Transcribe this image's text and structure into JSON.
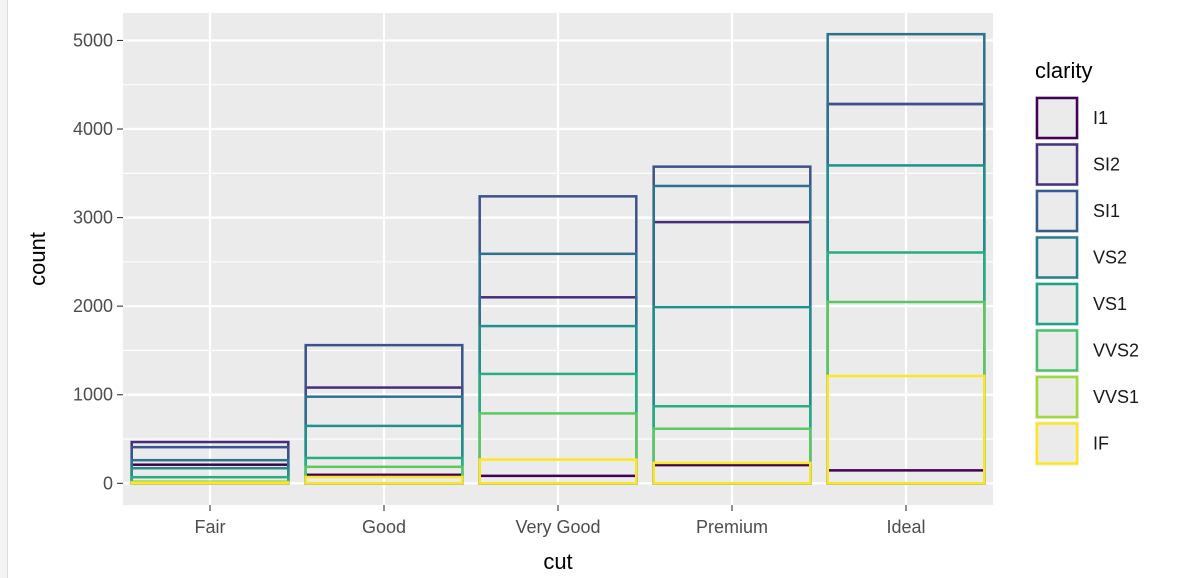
{
  "chart_data": {
    "type": "bar",
    "position": "identity",
    "xlabel": "cut",
    "ylabel": "count",
    "categories": [
      "Fair",
      "Good",
      "Very Good",
      "Premium",
      "Ideal"
    ],
    "ylim": [
      0,
      5100
    ],
    "yticks": [
      0,
      1000,
      2000,
      3000,
      4000,
      5000
    ],
    "grid": true,
    "legend": {
      "title": "clarity",
      "placement": "right"
    },
    "series": [
      {
        "name": "I1",
        "color": "#440154",
        "values": [
          210,
          96,
          84,
          205,
          146
        ]
      },
      {
        "name": "SI2",
        "color": "#472D7B",
        "values": [
          466,
          1081,
          2100,
          2949,
          4282
        ]
      },
      {
        "name": "SI1",
        "color": "#3B528B",
        "values": [
          408,
          1560,
          3240,
          3575,
          4282
        ]
      },
      {
        "name": "VS2",
        "color": "#2C728E",
        "values": [
          261,
          978,
          2591,
          3357,
          5071
        ]
      },
      {
        "name": "VS1",
        "color": "#21908C",
        "values": [
          170,
          648,
          1775,
          1989,
          3589
        ]
      },
      {
        "name": "VVS2",
        "color": "#27AD81",
        "values": [
          69,
          286,
          1235,
          870,
          2606
        ]
      },
      {
        "name": "VVS1",
        "color": "#5DC863",
        "values": [
          17,
          186,
          789,
          616,
          2047
        ]
      },
      {
        "name": "IF",
        "color": "#FDE725",
        "values": [
          9,
          71,
          268,
          230,
          1212
        ]
      }
    ],
    "legend_colors": [
      "#440154",
      "#46337E",
      "#365C8D",
      "#277F8E",
      "#1FA187",
      "#4AC16D",
      "#9FDA3A",
      "#FDE725"
    ]
  }
}
